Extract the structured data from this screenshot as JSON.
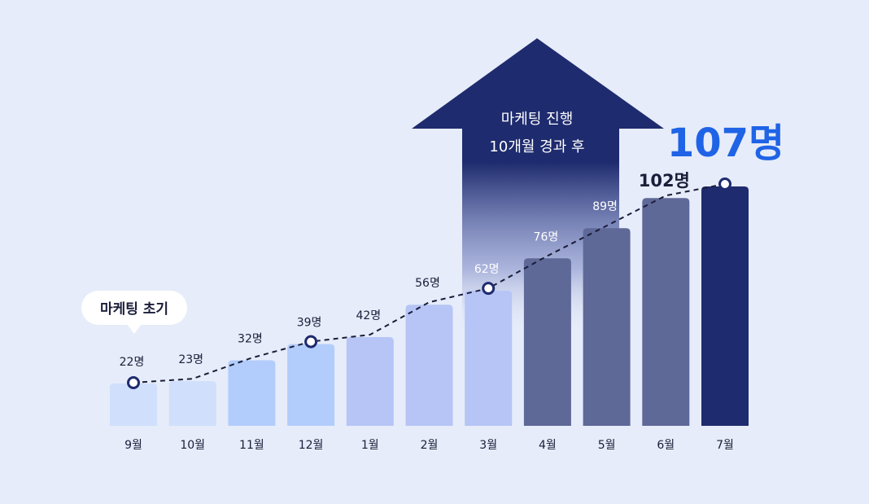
{
  "colors": {
    "background": "#e6ecf9",
    "bar_light_1": "#cfdffc",
    "bar_light_2": "#b2cdfc",
    "bar_light_3": "#b6c5f6",
    "bar_mid": "#5e6998",
    "bar_dark": "#1e2b6e",
    "arrow": "#1e2b6e",
    "highlight": "#1f63e6",
    "line": "#1b1e3a"
  },
  "callout": {
    "label": "마케팅 초기"
  },
  "arrow": {
    "line1": "마케팅 진행",
    "line2": "10개월 경과 후"
  },
  "headline": {
    "value": "107명"
  },
  "chart_data": {
    "type": "bar",
    "categories": [
      "9월",
      "10월",
      "11월",
      "12월",
      "1월",
      "2월",
      "3월",
      "4월",
      "5월",
      "6월",
      "7월"
    ],
    "values": [
      22,
      23,
      32,
      39,
      42,
      56,
      62,
      76,
      89,
      102,
      107
    ],
    "data_labels": [
      "22명",
      "23명",
      "32명",
      "39명",
      "42명",
      "56명",
      "62명",
      "76명",
      "89명",
      "102명",
      ""
    ],
    "trend_line": {
      "style": "dashed",
      "markers_at": [
        "9월",
        "12월",
        "3월",
        "7월"
      ]
    },
    "grid": false,
    "legend": "none"
  }
}
